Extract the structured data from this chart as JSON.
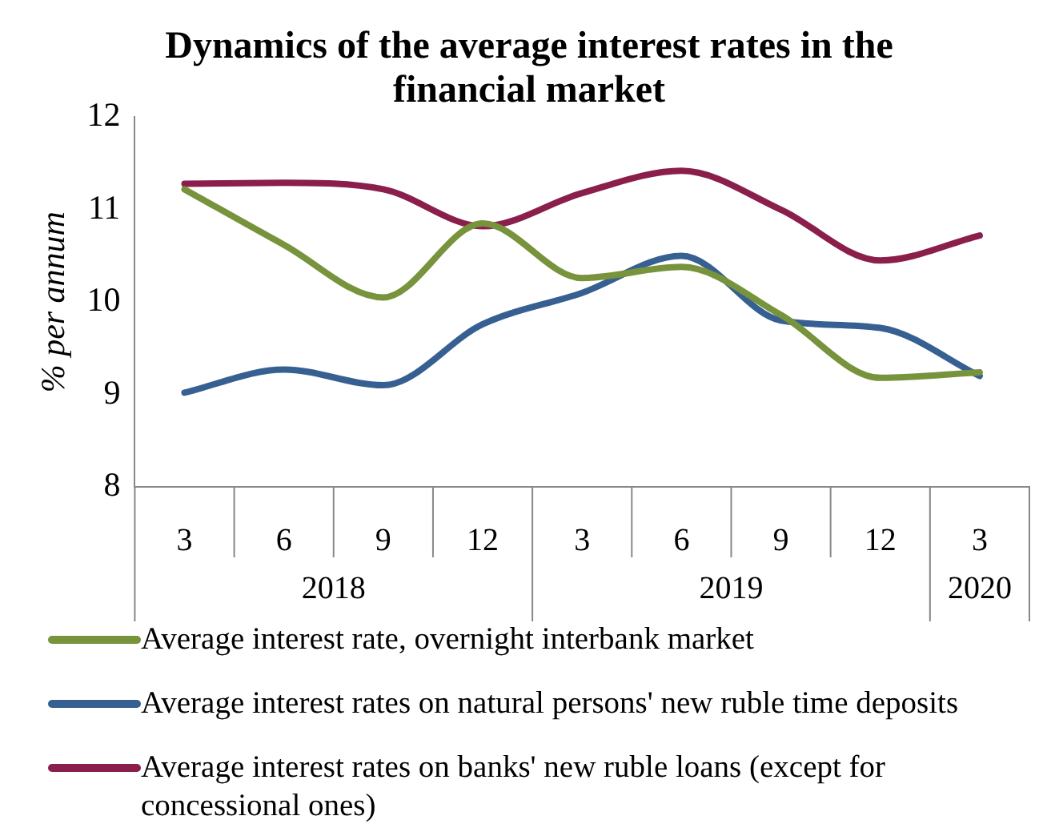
{
  "chart_data": {
    "type": "line",
    "title": "Dynamics of the average interest rates in the financial market",
    "ylabel": "% per annum",
    "categories": [
      "3",
      "6",
      "9",
      "12",
      "3",
      "6",
      "9",
      "12",
      "3"
    ],
    "annotations": [
      "2018",
      "2019",
      "2020"
    ],
    "series": [
      {
        "name": "Average interest rate, overnight interbank market",
        "color": "#77933c",
        "values": [
          11.22,
          10.62,
          10.05,
          10.85,
          10.26,
          10.38,
          9.86,
          9.18,
          9.24
        ]
      },
      {
        "name": "Average interest rates on natural persons'  new ruble time deposits",
        "color": "#376092",
        "values": [
          9.02,
          9.27,
          9.1,
          9.76,
          10.1,
          10.5,
          9.8,
          9.72,
          9.2
        ]
      },
      {
        "name": "Average interest rates on banks' new ruble loans (except for concessional ones)",
        "color": "#8b1f4b",
        "values": [
          11.28,
          11.29,
          11.22,
          10.82,
          11.18,
          11.42,
          11.0,
          10.45,
          10.72
        ]
      }
    ],
    "ylim": [
      8,
      12
    ],
    "yticks": [
      8,
      9,
      10,
      11,
      12
    ],
    "grid": false,
    "legend": "bottom",
    "marker": "none",
    "line_style": "solid"
  }
}
